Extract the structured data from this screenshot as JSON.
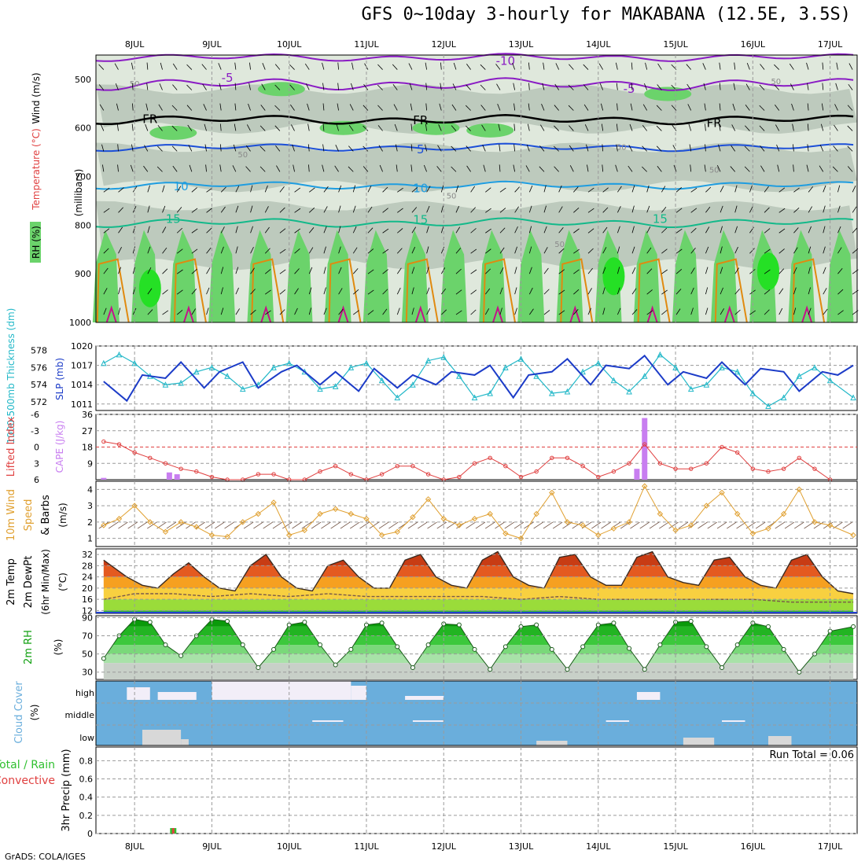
{
  "title": "GFS 0~10day 3-hourly for MAKABANA (12.5E, 3.5S)",
  "footer": "GrADS: COLA/IGES",
  "colors": {
    "rh_dark": "#b9c7b9",
    "rh_mid": "#dfe8dc",
    "rh_green": "#6bd36b",
    "rh_bright": "#25e025",
    "temp_line_purple": "#8a1cc4",
    "temp_line_blue": "#1c4fd8",
    "temp_line_lightblue": "#1f9de0",
    "temp_line_teal": "#13b98a",
    "temp_line_orange": "#e08a10",
    "temp_line_magenta": "#c4128a",
    "slp": "#1c3cc8",
    "thickness": "#22b8c8",
    "cape": "#c87ef0",
    "lifted_index": "#e04040",
    "wind10m": "#e0a030",
    "cloud_blue": "#6aaedc",
    "cloud_gray": "#d8d8d8",
    "cloud_white": "#f2eef8",
    "precip_total": "#30c030",
    "precip_conv": "#e04040"
  },
  "days": [
    "8JUL",
    "9JUL",
    "10JUL",
    "11JUL",
    "12JUL",
    "13JUL",
    "14JUL",
    "15JUL",
    "16JUL",
    "17JUL"
  ],
  "panels": {
    "wind_profile": {
      "ylabel_parts": [
        "RH (%)",
        "Temperature (°C)",
        "Wind (m/s)"
      ],
      "axis_label": "(millibars)",
      "yticks": [
        "500",
        "600",
        "700",
        "800",
        "900",
        "1000"
      ],
      "contour_labels": {
        "minus10": "-10",
        "minus5": "-5",
        "freezing": "FR",
        "five": "5",
        "ten": "10",
        "fifteen": "15",
        "fifty": "50"
      }
    },
    "thickness_slp": {
      "ylabel_thickness": "1000-500mb Thickness (dm)",
      "ylabel_slp": "SLP (mb)",
      "yticks_thickness": [
        "578",
        "576",
        "574",
        "572"
      ],
      "yticks_slp": [
        "1020",
        "1017",
        "1014",
        "1011"
      ]
    },
    "li_cape": {
      "ylabel_li": "Lifted Index",
      "ylabel_cape": "CAPE (J/kg)",
      "yticks_li": [
        "-6",
        "-3",
        "0",
        "3",
        "6"
      ],
      "yticks_cape": [
        "36",
        "27",
        "18",
        "9"
      ]
    },
    "wind10m": {
      "ylabel_a": "10m Wind",
      "ylabel_b": "Speed",
      "ylabel_c": "& Barbs",
      "unit": "(m/s)",
      "yticks": [
        "4",
        "3",
        "2",
        "1"
      ]
    },
    "temp2m": {
      "ylabel_a": "2m Temp",
      "ylabel_b": "2m DewPt",
      "ylabel_c": "(6hr Min/Max)",
      "unit": "(°C)",
      "yticks": [
        "32",
        "28",
        "24",
        "20",
        "16",
        "12"
      ]
    },
    "rh2m": {
      "ylabel": "2m RH",
      "unit": "(%)",
      "yticks": [
        "90",
        "70",
        "50",
        "30"
      ]
    },
    "cloud": {
      "ylabel": "Cloud Cover",
      "unit": "(%)",
      "levels": [
        "high",
        "middle",
        "low"
      ]
    },
    "precip": {
      "ylabel_a": "Total / Rain",
      "ylabel_b": "Convective",
      "ylabel_c": "3hr Precip (mm)",
      "yticks": [
        "0.8",
        "0.6",
        "0.4",
        "0.2",
        "0"
      ],
      "run_total": "Run Total = 0.06"
    }
  },
  "chart_data": [
    {
      "type": "line",
      "name": "SLP",
      "x_days": [
        7.6,
        7.9,
        8.1,
        8.4,
        8.6,
        8.9,
        9.1,
        9.4,
        9.6,
        9.9,
        10.1,
        10.4,
        10.6,
        10.9,
        11.1,
        11.4,
        11.6,
        11.9,
        12.1,
        12.4,
        12.6,
        12.9,
        13.1,
        13.4,
        13.6,
        13.9,
        14.1,
        14.4,
        14.6,
        14.9,
        15.1,
        15.4,
        15.6,
        15.9,
        16.1,
        16.4,
        16.6,
        16.9,
        17.1,
        17.3
      ],
      "values": [
        1014.5,
        1011.5,
        1015.5,
        1015,
        1017.5,
        1013.5,
        1016,
        1017.5,
        1013.5,
        1016,
        1017,
        1014,
        1016,
        1013,
        1016.5,
        1013.5,
        1015.5,
        1014,
        1016,
        1015.5,
        1017,
        1012,
        1015.5,
        1016,
        1018,
        1014,
        1017,
        1016.5,
        1018.5,
        1014,
        1016,
        1015,
        1017.5,
        1014,
        1016.5,
        1016,
        1013,
        1016,
        1015.5,
        1017
      ]
    },
    {
      "type": "line",
      "name": "1000-500mb Thickness",
      "x_days": [
        7.6,
        7.8,
        8.0,
        8.2,
        8.4,
        8.6,
        8.8,
        9.0,
        9.2,
        9.4,
        9.6,
        9.8,
        10.0,
        10.2,
        10.4,
        10.6,
        10.8,
        11.0,
        11.2,
        11.4,
        11.6,
        11.8,
        12.0,
        12.2,
        12.4,
        12.6,
        12.8,
        13.0,
        13.2,
        13.4,
        13.6,
        13.8,
        14.0,
        14.2,
        14.4,
        14.6,
        14.8,
        15.0,
        15.2,
        15.4,
        15.6,
        15.8,
        16.0,
        16.2,
        16.4,
        16.6,
        16.8,
        17.0,
        17.3
      ],
      "values": [
        576.5,
        577.5,
        576.5,
        575,
        574,
        574.2,
        575.5,
        576,
        575,
        573.5,
        574,
        576,
        576.5,
        575.5,
        573.5,
        573.8,
        576,
        576.5,
        574.5,
        572.5,
        574,
        576.8,
        577.2,
        575,
        572.5,
        573,
        576,
        577,
        575,
        573,
        573.2,
        575.5,
        576.5,
        574.5,
        573.2,
        575,
        577.5,
        576,
        573.5,
        574,
        576,
        575.5,
        573,
        571.5,
        572.5,
        575,
        576,
        574.5,
        572.5
      ]
    },
    {
      "type": "line",
      "name": "Lifted Index",
      "x_days": [
        7.6,
        7.8,
        8.0,
        8.2,
        8.4,
        8.6,
        8.8,
        9.0,
        9.2,
        9.4,
        9.6,
        9.8,
        10.0,
        10.2,
        10.4,
        10.6,
        10.8,
        11.0,
        11.2,
        11.4,
        11.6,
        11.8,
        12.0,
        12.2,
        12.4,
        12.6,
        12.8,
        13.0,
        13.2,
        13.4,
        13.6,
        13.8,
        14.0,
        14.2,
        14.4,
        14.6,
        14.8,
        15.0,
        15.2,
        15.4,
        15.6,
        15.8,
        16.0,
        16.2,
        16.4,
        16.6,
        16.8,
        17.0
      ],
      "values": [
        -1,
        -0.5,
        1,
        2,
        3,
        4,
        4.5,
        5.5,
        6,
        6,
        5,
        5,
        6,
        6,
        4.5,
        3.5,
        5,
        6,
        5,
        3.5,
        3.5,
        5,
        6,
        5.5,
        3,
        2,
        3.5,
        5.5,
        4.5,
        2,
        2,
        3.5,
        5.5,
        4.5,
        3,
        -0.5,
        3,
        4,
        4,
        3,
        0,
        1,
        4,
        4.5,
        4,
        2,
        4,
        6
      ]
    },
    {
      "type": "bar",
      "name": "CAPE",
      "x_days": [
        7.6,
        8.45,
        8.55,
        14.5,
        14.6
      ],
      "values": [
        1,
        4,
        3,
        6,
        34
      ]
    },
    {
      "type": "line",
      "name": "10m Wind Speed",
      "x_days": [
        7.6,
        7.8,
        8.0,
        8.2,
        8.4,
        8.6,
        8.8,
        9.0,
        9.2,
        9.4,
        9.6,
        9.8,
        10.0,
        10.2,
        10.4,
        10.6,
        10.8,
        11.0,
        11.2,
        11.4,
        11.6,
        11.8,
        12.0,
        12.2,
        12.4,
        12.6,
        12.8,
        13.0,
        13.2,
        13.4,
        13.6,
        13.8,
        14.0,
        14.2,
        14.4,
        14.6,
        14.8,
        15.0,
        15.2,
        15.4,
        15.6,
        15.8,
        16.0,
        16.2,
        16.4,
        16.6,
        16.8,
        17.0,
        17.3
      ],
      "values": [
        1.8,
        2.2,
        3,
        2,
        1.4,
        2,
        1.7,
        1.2,
        1.1,
        2,
        2.5,
        3.2,
        1.2,
        1.5,
        2.5,
        2.8,
        2.5,
        2.2,
        1.2,
        1.4,
        2.3,
        3.4,
        2.2,
        1.8,
        2.2,
        2.5,
        1.3,
        1,
        2.5,
        3.8,
        2,
        1.8,
        1.2,
        1.6,
        2,
        4.2,
        2.5,
        1.5,
        1.8,
        3,
        3.8,
        2.5,
        1.3,
        1.6,
        2.5,
        4,
        2,
        1.8,
        1.2
      ]
    },
    {
      "type": "area",
      "name": "2m Temp",
      "x_days": [
        7.6,
        7.9,
        8.1,
        8.3,
        8.5,
        8.7,
        8.9,
        9.1,
        9.3,
        9.5,
        9.7,
        9.9,
        10.1,
        10.3,
        10.5,
        10.7,
        10.9,
        11.1,
        11.3,
        11.5,
        11.7,
        11.9,
        12.1,
        12.3,
        12.5,
        12.7,
        12.9,
        13.1,
        13.3,
        13.5,
        13.7,
        13.9,
        14.1,
        14.3,
        14.5,
        14.7,
        14.9,
        15.1,
        15.3,
        15.5,
        15.7,
        15.9,
        16.1,
        16.3,
        16.5,
        16.7,
        16.9,
        17.1,
        17.3
      ],
      "values": [
        30,
        24,
        21,
        20,
        25,
        29,
        24,
        20,
        19,
        28,
        32,
        24,
        20,
        19,
        28,
        30,
        24,
        20,
        20,
        30,
        32,
        24,
        21,
        20,
        30,
        33,
        24,
        21,
        20,
        31,
        32,
        24,
        21,
        21,
        31,
        33,
        24,
        22,
        21,
        30,
        31,
        24,
        21,
        20,
        30,
        32,
        24,
        19,
        18
      ]
    },
    {
      "type": "line",
      "name": "2m DewPt",
      "x_days": [
        7.6,
        8.0,
        8.5,
        9.0,
        9.5,
        10.0,
        10.5,
        11.0,
        11.5,
        12.0,
        12.5,
        13.0,
        13.5,
        14.0,
        14.5,
        15.0,
        15.5,
        16.0,
        16.5,
        17.0,
        17.3
      ],
      "values": [
        16,
        18,
        18,
        17,
        18,
        17,
        18,
        17,
        17,
        17,
        17,
        16,
        17,
        16,
        16,
        16,
        16,
        16,
        15,
        15,
        15
      ]
    },
    {
      "type": "area",
      "name": "2m RH",
      "x_days": [
        7.6,
        7.8,
        8.0,
        8.2,
        8.4,
        8.6,
        8.8,
        9.0,
        9.2,
        9.4,
        9.6,
        9.8,
        10.0,
        10.2,
        10.4,
        10.6,
        10.8,
        11.0,
        11.2,
        11.4,
        11.6,
        11.8,
        12.0,
        12.2,
        12.4,
        12.6,
        12.8,
        13.0,
        13.2,
        13.4,
        13.6,
        13.8,
        14.0,
        14.2,
        14.4,
        14.6,
        14.8,
        15.0,
        15.2,
        15.4,
        15.6,
        15.8,
        16.0,
        16.2,
        16.4,
        16.6,
        16.8,
        17.0,
        17.3
      ],
      "values": [
        45,
        70,
        88,
        85,
        60,
        48,
        70,
        88,
        86,
        60,
        35,
        55,
        82,
        85,
        60,
        38,
        55,
        82,
        84,
        58,
        35,
        60,
        83,
        82,
        55,
        33,
        58,
        80,
        82,
        55,
        33,
        58,
        82,
        84,
        56,
        33,
        60,
        85,
        86,
        58,
        35,
        60,
        84,
        80,
        55,
        30,
        50,
        75,
        80
      ]
    },
    {
      "type": "bar",
      "name": "3hr Precip",
      "x_days": [
        8.5
      ],
      "values": [
        0.06
      ]
    }
  ]
}
